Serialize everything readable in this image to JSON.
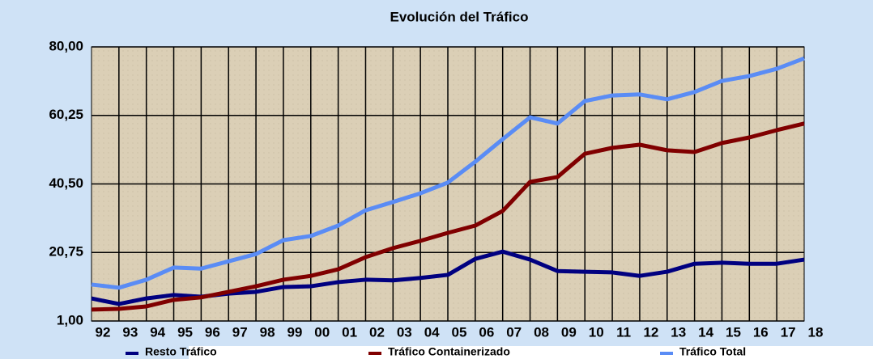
{
  "chart_data": {
    "type": "line",
    "title": "Evolución del Tráfico",
    "categories": [
      "92",
      "93",
      "94",
      "95",
      "96",
      "97",
      "98",
      "99",
      "00",
      "01",
      "02",
      "03",
      "04",
      "05",
      "06",
      "07",
      "08",
      "09",
      "10",
      "11",
      "12",
      "13",
      "14",
      "15",
      "16",
      "17",
      "18"
    ],
    "series": [
      {
        "name": "Resto Tráfico",
        "color": "#000080",
        "values": [
          7.5,
          5.9,
          7.5,
          8.5,
          8.0,
          8.9,
          9.4,
          10.8,
          11.0,
          12.2,
          12.9,
          12.7,
          13.4,
          14.3,
          18.9,
          21.0,
          18.7,
          15.4,
          15.2,
          15.0,
          14.0,
          15.2,
          17.5,
          17.8,
          17.5,
          17.5,
          18.7
        ]
      },
      {
        "name": "Tráfico Containerizado",
        "color": "#800000",
        "values": [
          4.3,
          4.5,
          5.2,
          7.1,
          7.8,
          9.4,
          11.0,
          12.9,
          14.0,
          15.9,
          19.4,
          22.0,
          24.1,
          26.4,
          28.5,
          32.7,
          41.1,
          42.5,
          49.2,
          50.9,
          51.8,
          50.2,
          49.7,
          52.3,
          53.9,
          56.0,
          57.9
        ]
      },
      {
        "name": "Tráfico Total",
        "color": "#5a8cf5",
        "values": [
          11.5,
          10.6,
          12.9,
          16.4,
          16.1,
          18.2,
          20.3,
          24.3,
          25.5,
          28.5,
          32.9,
          35.3,
          37.8,
          40.9,
          46.9,
          53.4,
          59.7,
          57.9,
          64.4,
          66.0,
          66.3,
          64.9,
          67.0,
          70.2,
          71.6,
          73.7,
          76.7
        ]
      }
    ],
    "ylim": [
      1,
      80
    ],
    "yticks": [
      {
        "value": 1,
        "label": "1,00"
      },
      {
        "value": 20.75,
        "label": "20,75"
      },
      {
        "value": 40.5,
        "label": "40,50"
      },
      {
        "value": 60.25,
        "label": "60,25"
      },
      {
        "value": 80,
        "label": "80,00"
      }
    ],
    "grid": true
  }
}
